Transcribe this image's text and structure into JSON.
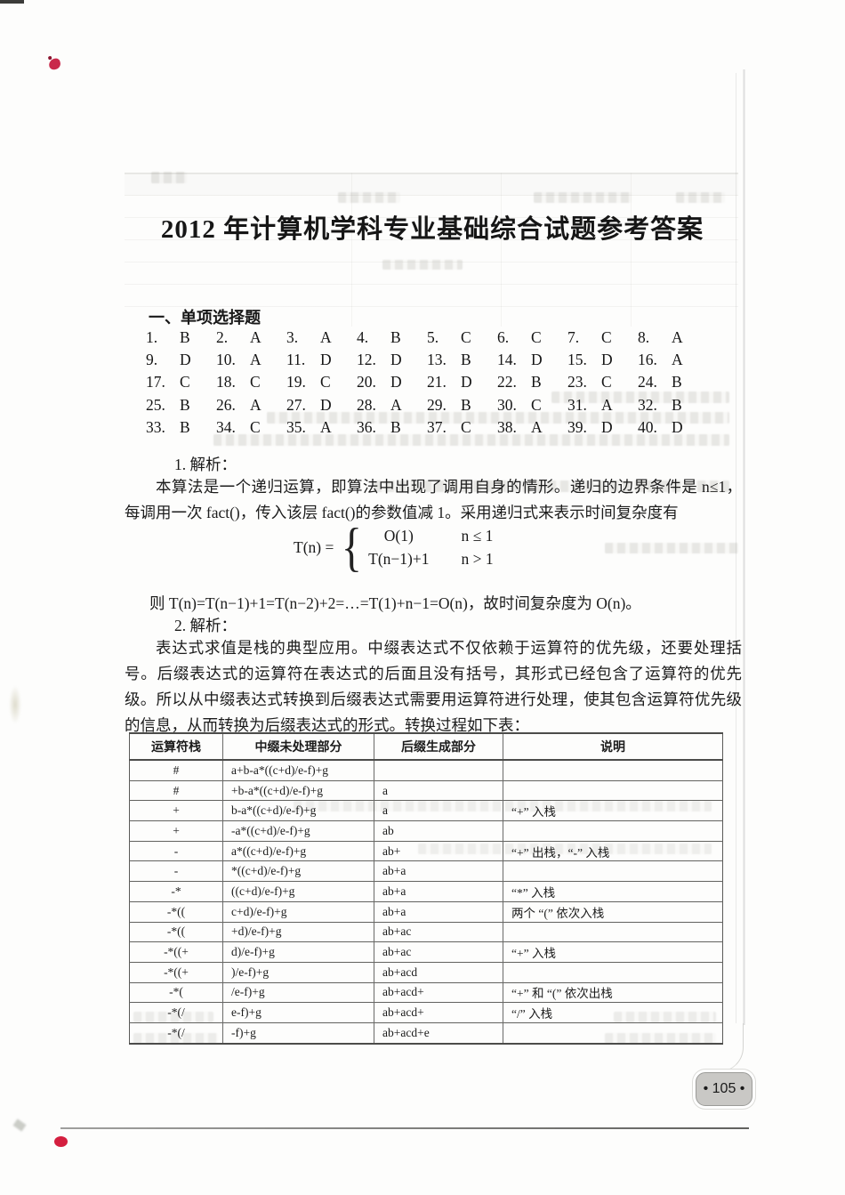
{
  "page": {
    "title": "2012 年计算机学科专业基础综合试题参考答案",
    "page_number": "• 105 •"
  },
  "colors": {
    "page_bg": "#fdfdfc",
    "ink": "#1f1f1f",
    "badge_bg": "#c9c8c5",
    "mark_red": "#cf2342"
  },
  "section1": {
    "heading": "一、单项选择题",
    "answers": [
      {
        "num": "1.",
        "letter": "B"
      },
      {
        "num": "2.",
        "letter": "A"
      },
      {
        "num": "3.",
        "letter": "A"
      },
      {
        "num": "4.",
        "letter": "B"
      },
      {
        "num": "5.",
        "letter": "C"
      },
      {
        "num": "6.",
        "letter": "C"
      },
      {
        "num": "7.",
        "letter": "C"
      },
      {
        "num": "8.",
        "letter": "A"
      },
      {
        "num": "9.",
        "letter": "D"
      },
      {
        "num": "10.",
        "letter": "A"
      },
      {
        "num": "11.",
        "letter": "D"
      },
      {
        "num": "12.",
        "letter": "D"
      },
      {
        "num": "13.",
        "letter": "B"
      },
      {
        "num": "14.",
        "letter": "D"
      },
      {
        "num": "15.",
        "letter": "D"
      },
      {
        "num": "16.",
        "letter": "A"
      },
      {
        "num": "17.",
        "letter": "C"
      },
      {
        "num": "18.",
        "letter": "C"
      },
      {
        "num": "19.",
        "letter": "C"
      },
      {
        "num": "20.",
        "letter": "D"
      },
      {
        "num": "21.",
        "letter": "D"
      },
      {
        "num": "22.",
        "letter": "B"
      },
      {
        "num": "23.",
        "letter": "C"
      },
      {
        "num": "24.",
        "letter": "B"
      },
      {
        "num": "25.",
        "letter": "B"
      },
      {
        "num": "26.",
        "letter": "A"
      },
      {
        "num": "27.",
        "letter": "D"
      },
      {
        "num": "28.",
        "letter": "A"
      },
      {
        "num": "29.",
        "letter": "B"
      },
      {
        "num": "30.",
        "letter": "C"
      },
      {
        "num": "31.",
        "letter": "A"
      },
      {
        "num": "32.",
        "letter": "B"
      },
      {
        "num": "33.",
        "letter": "B"
      },
      {
        "num": "34.",
        "letter": "C"
      },
      {
        "num": "35.",
        "letter": "A"
      },
      {
        "num": "36.",
        "letter": "B"
      },
      {
        "num": "37.",
        "letter": "C"
      },
      {
        "num": "38.",
        "letter": "A"
      },
      {
        "num": "39.",
        "letter": "D"
      },
      {
        "num": "40.",
        "letter": "D"
      }
    ]
  },
  "analysis1": {
    "label": "1. 解析：",
    "para": "本算法是一个递归运算，即算法中出现了调用自身的情形。递归的边界条件是 n≤1，每调用一次 fact()，传入该层 fact()的参数值减 1。采用递归式来表示时间复杂度有",
    "formula": {
      "lhs": "T(n) =",
      "brace": "{",
      "cases": [
        {
          "expr": "O(1)",
          "cond": "n ≤ 1"
        },
        {
          "expr": "T(n−1)+1",
          "cond": "n > 1"
        }
      ]
    },
    "conclusion": "则 T(n)=T(n−1)+1=T(n−2)+2=…=T(1)+n−1=O(n)，故时间复杂度为 O(n)。"
  },
  "analysis2": {
    "label": "2. 解析：",
    "para": "表达式求值是栈的典型应用。中缀表达式不仅依赖于运算符的优先级，还要处理括号。后缀表达式的运算符在表达式的后面且没有括号，其形式已经包含了运算符的优先级。所以从中缀表达式转换到后缀表达式需要用运算符进行处理，使其包含运算符优先级的信息，从而转换为后缀表达式的形式。转换过程如下表："
  },
  "table": {
    "headers": [
      "运算符栈",
      "中缀未处理部分",
      "后缀生成部分",
      "说明"
    ],
    "rows": [
      [
        "#",
        "a+b-a*((c+d)/e-f)+g",
        "",
        ""
      ],
      [
        "#",
        "+b-a*((c+d)/e-f)+g",
        "a",
        ""
      ],
      [
        "+",
        "b-a*((c+d)/e-f)+g",
        "a",
        "“+” 入栈"
      ],
      [
        "+",
        "-a*((c+d)/e-f)+g",
        "ab",
        ""
      ],
      [
        "-",
        "a*((c+d)/e-f)+g",
        "ab+",
        "“+” 出栈，“-” 入栈"
      ],
      [
        "-",
        "*((c+d)/e-f)+g",
        "ab+a",
        ""
      ],
      [
        "-*",
        "((c+d)/e-f)+g",
        "ab+a",
        "“*” 入栈"
      ],
      [
        "-*((",
        "c+d)/e-f)+g",
        "ab+a",
        "两个 “(” 依次入栈"
      ],
      [
        "-*((",
        "+d)/e-f)+g",
        "ab+ac",
        ""
      ],
      [
        "-*((+",
        "d)/e-f)+g",
        "ab+ac",
        "“+” 入栈"
      ],
      [
        "-*((+",
        ")/e-f)+g",
        "ab+acd",
        ""
      ],
      [
        "-*(",
        "/e-f)+g",
        "ab+acd+",
        "“+” 和 “(” 依次出栈"
      ],
      [
        "-*(/",
        "e-f)+g",
        "ab+acd+",
        "“/” 入栈"
      ],
      [
        "-*(/",
        "-f)+g",
        "ab+acd+e",
        ""
      ]
    ]
  }
}
